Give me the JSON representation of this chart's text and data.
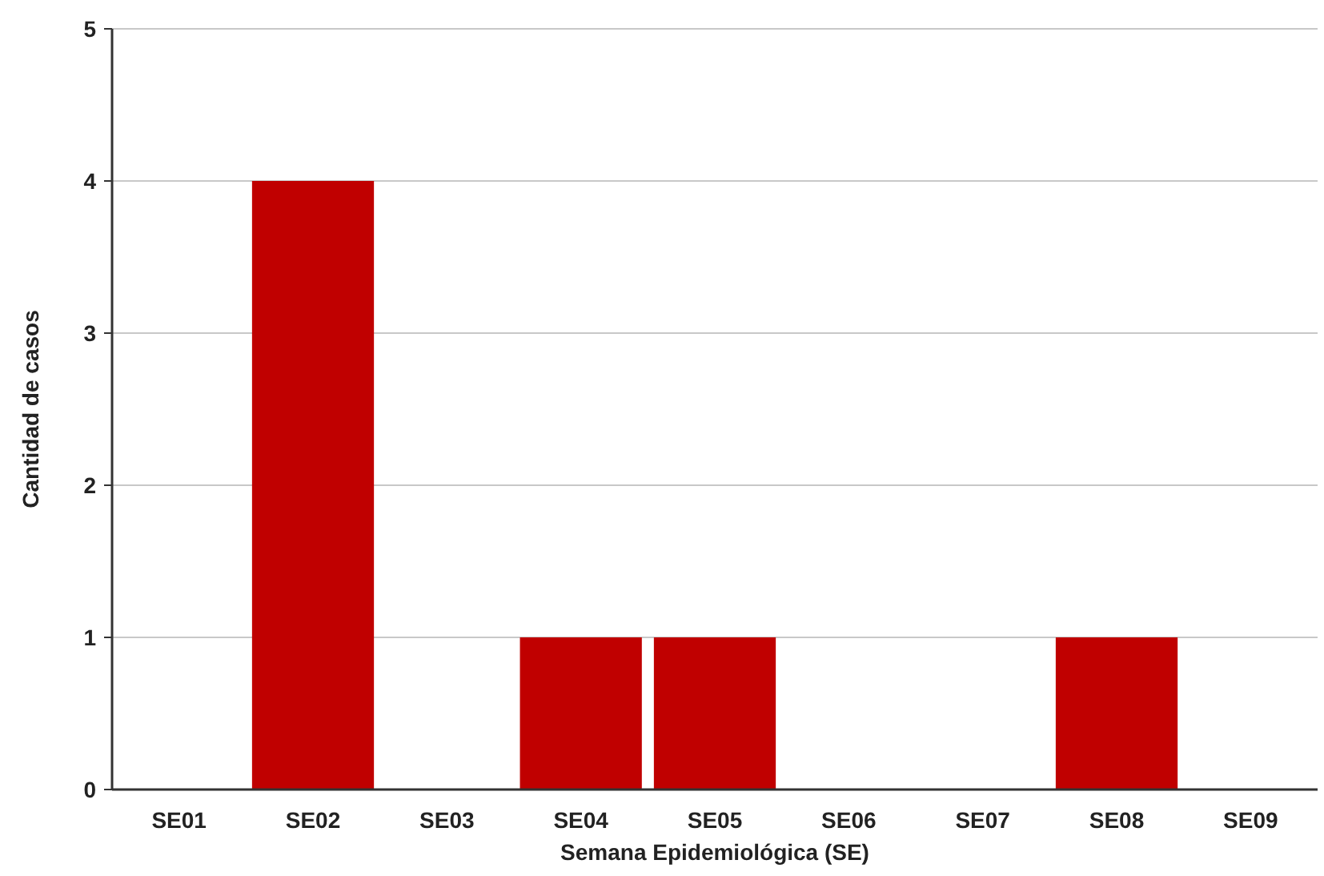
{
  "chart_data": {
    "type": "bar",
    "xlabel": "Semana Epidemiológica (SE)",
    "ylabel": "Cantidad de casos",
    "categories": [
      "SE01",
      "SE02",
      "SE03",
      "SE04",
      "SE05",
      "SE06",
      "SE07",
      "SE08",
      "SE09"
    ],
    "values": [
      0,
      4,
      0,
      1,
      1,
      0,
      0,
      1,
      0
    ],
    "color": "#c00000",
    "ylim": [
      0,
      5
    ],
    "yticks": [
      0,
      1,
      2,
      3,
      4,
      5
    ],
    "grid": "y"
  }
}
